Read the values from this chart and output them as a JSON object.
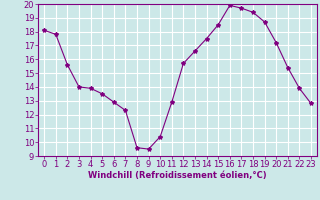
{
  "x": [
    0,
    1,
    2,
    3,
    4,
    5,
    6,
    7,
    8,
    9,
    10,
    11,
    12,
    13,
    14,
    15,
    16,
    17,
    18,
    19,
    20,
    21,
    22,
    23
  ],
  "y": [
    18.1,
    17.8,
    15.6,
    14.0,
    13.9,
    13.5,
    12.9,
    12.3,
    9.6,
    9.5,
    10.4,
    12.9,
    15.7,
    16.6,
    17.5,
    18.5,
    19.9,
    19.7,
    19.4,
    18.7,
    17.2,
    15.4,
    13.9,
    12.8
  ],
  "line_color": "#800080",
  "marker": "*",
  "marker_size": 3,
  "bg_color": "#cce8e8",
  "grid_color": "#ffffff",
  "xlabel": "Windchill (Refroidissement éolien,°C)",
  "xlabel_color": "#800080",
  "tick_color": "#800080",
  "ylim": [
    9,
    20
  ],
  "xlim_min": -0.5,
  "xlim_max": 23.5,
  "yticks": [
    9,
    10,
    11,
    12,
    13,
    14,
    15,
    16,
    17,
    18,
    19,
    20
  ],
  "xticks": [
    0,
    1,
    2,
    3,
    4,
    5,
    6,
    7,
    8,
    9,
    10,
    11,
    12,
    13,
    14,
    15,
    16,
    17,
    18,
    19,
    20,
    21,
    22,
    23
  ],
  "tick_fontsize": 6,
  "xlabel_fontsize": 6
}
